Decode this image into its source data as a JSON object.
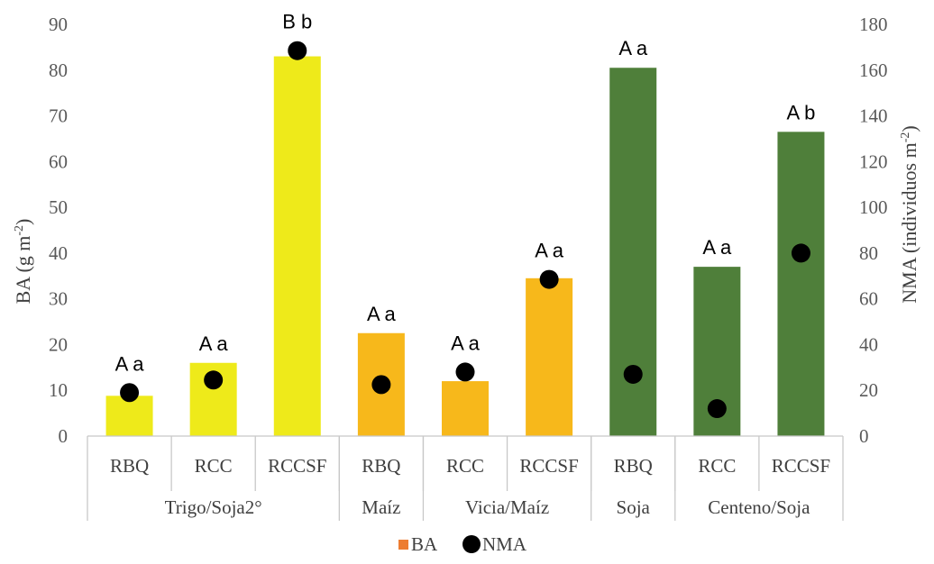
{
  "chart_data": {
    "type": "bar",
    "title": "",
    "ylabel": "BA (g  m",
    "ylabel_sup": "-2",
    "ylabel_end": ")",
    "y2label": "NMA (individuos m",
    "y2label_sup": "-2",
    "y2label_end": ")",
    "ylim": [
      0,
      90
    ],
    "y2lim": [
      0,
      180
    ],
    "yticks": [
      0,
      10,
      20,
      30,
      40,
      50,
      60,
      70,
      80,
      90
    ],
    "y2ticks": [
      0,
      20,
      40,
      60,
      80,
      100,
      120,
      140,
      160,
      180
    ],
    "groups": [
      {
        "name": "Trigo/Soja2°",
        "color": "#eeea1a",
        "categories": [
          "RBQ",
          "RCC",
          "RCCSF"
        ]
      },
      {
        "name": "Maíz",
        "color": "#f7b81b",
        "categories": [
          "RBQ"
        ]
      },
      {
        "name": "Vicia/Maíz",
        "color": "#f7b81b",
        "categories": [
          "RCC",
          "RCCSF"
        ]
      },
      {
        "name": "Soja",
        "color": "#4f7f3a",
        "categories": [
          "RBQ"
        ]
      },
      {
        "name": "Centeno/Soja",
        "color": "#4f7f3a",
        "categories": [
          "RCC",
          "RCCSF"
        ]
      }
    ],
    "series": [
      {
        "name": "BA",
        "type": "bar",
        "axis": "left",
        "values": [
          8.8,
          16,
          83,
          22.5,
          12,
          34.5,
          80.5,
          37,
          66.5
        ]
      },
      {
        "name": "NMA",
        "type": "scatter",
        "axis": "right",
        "values": [
          19,
          24.5,
          168.5,
          22.5,
          28,
          68.5,
          27,
          12,
          80
        ]
      }
    ],
    "annotations": [
      "A a",
      "A a",
      "B b",
      "A a",
      "A a",
      "A a",
      "A a",
      "A a",
      "A b"
    ],
    "legend": {
      "position": "bottom",
      "entries": [
        "BA",
        "NMA"
      ],
      "ba_color": "#ed7d31",
      "nma_color": "#000000"
    },
    "grid": false
  }
}
